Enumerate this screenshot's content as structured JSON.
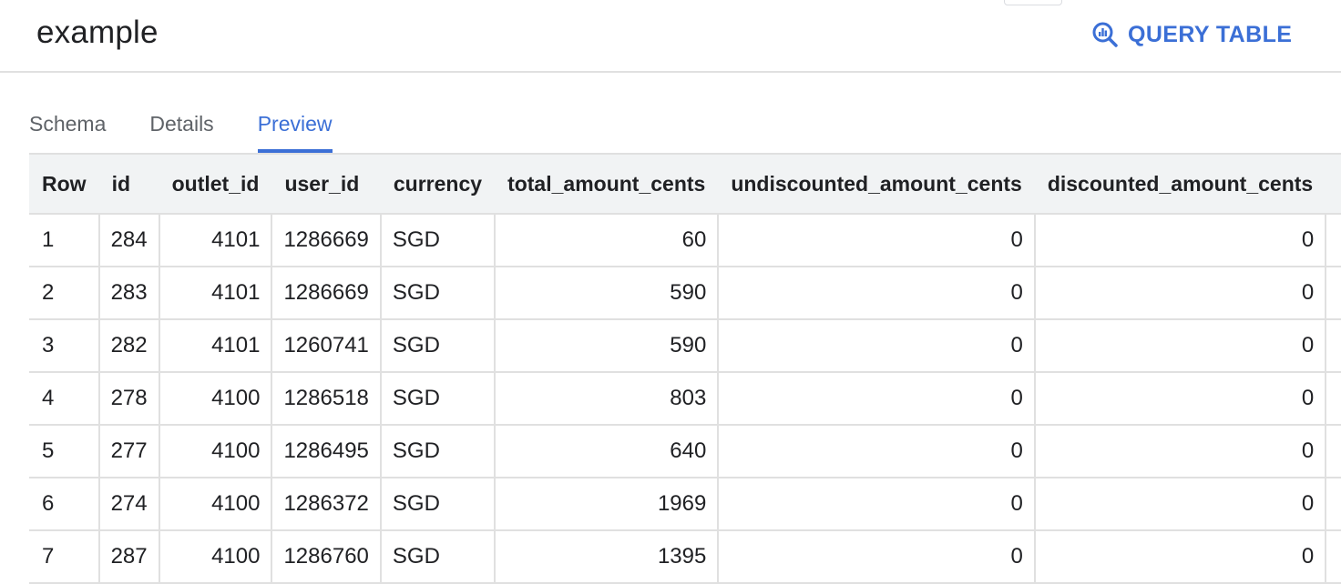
{
  "header": {
    "title": "example",
    "query_button_label": "QUERY TABLE",
    "query_icon": "search-analytics-icon"
  },
  "tabs": [
    {
      "label": "Schema",
      "active": false
    },
    {
      "label": "Details",
      "active": false
    },
    {
      "label": "Preview",
      "active": true
    }
  ],
  "colors": {
    "accent": "#3b6fd6",
    "header_bg": "#f1f3f4",
    "border": "#e0e0e0"
  },
  "table": {
    "columns": [
      "Row",
      "id",
      "outlet_id",
      "user_id",
      "currency",
      "total_amount_cents",
      "undiscounted_amount_cents",
      "discounted_amount_cents"
    ],
    "rows": [
      [
        "1",
        "284",
        "4101",
        "1286669",
        "SGD",
        "60",
        "0",
        "0"
      ],
      [
        "2",
        "283",
        "4101",
        "1286669",
        "SGD",
        "590",
        "0",
        "0"
      ],
      [
        "3",
        "282",
        "4101",
        "1260741",
        "SGD",
        "590",
        "0",
        "0"
      ],
      [
        "4",
        "278",
        "4100",
        "1286518",
        "SGD",
        "803",
        "0",
        "0"
      ],
      [
        "5",
        "277",
        "4100",
        "1286495",
        "SGD",
        "640",
        "0",
        "0"
      ],
      [
        "6",
        "274",
        "4100",
        "1286372",
        "SGD",
        "1969",
        "0",
        "0"
      ],
      [
        "7",
        "287",
        "4100",
        "1286760",
        "SGD",
        "1395",
        "0",
        "0"
      ]
    ]
  }
}
